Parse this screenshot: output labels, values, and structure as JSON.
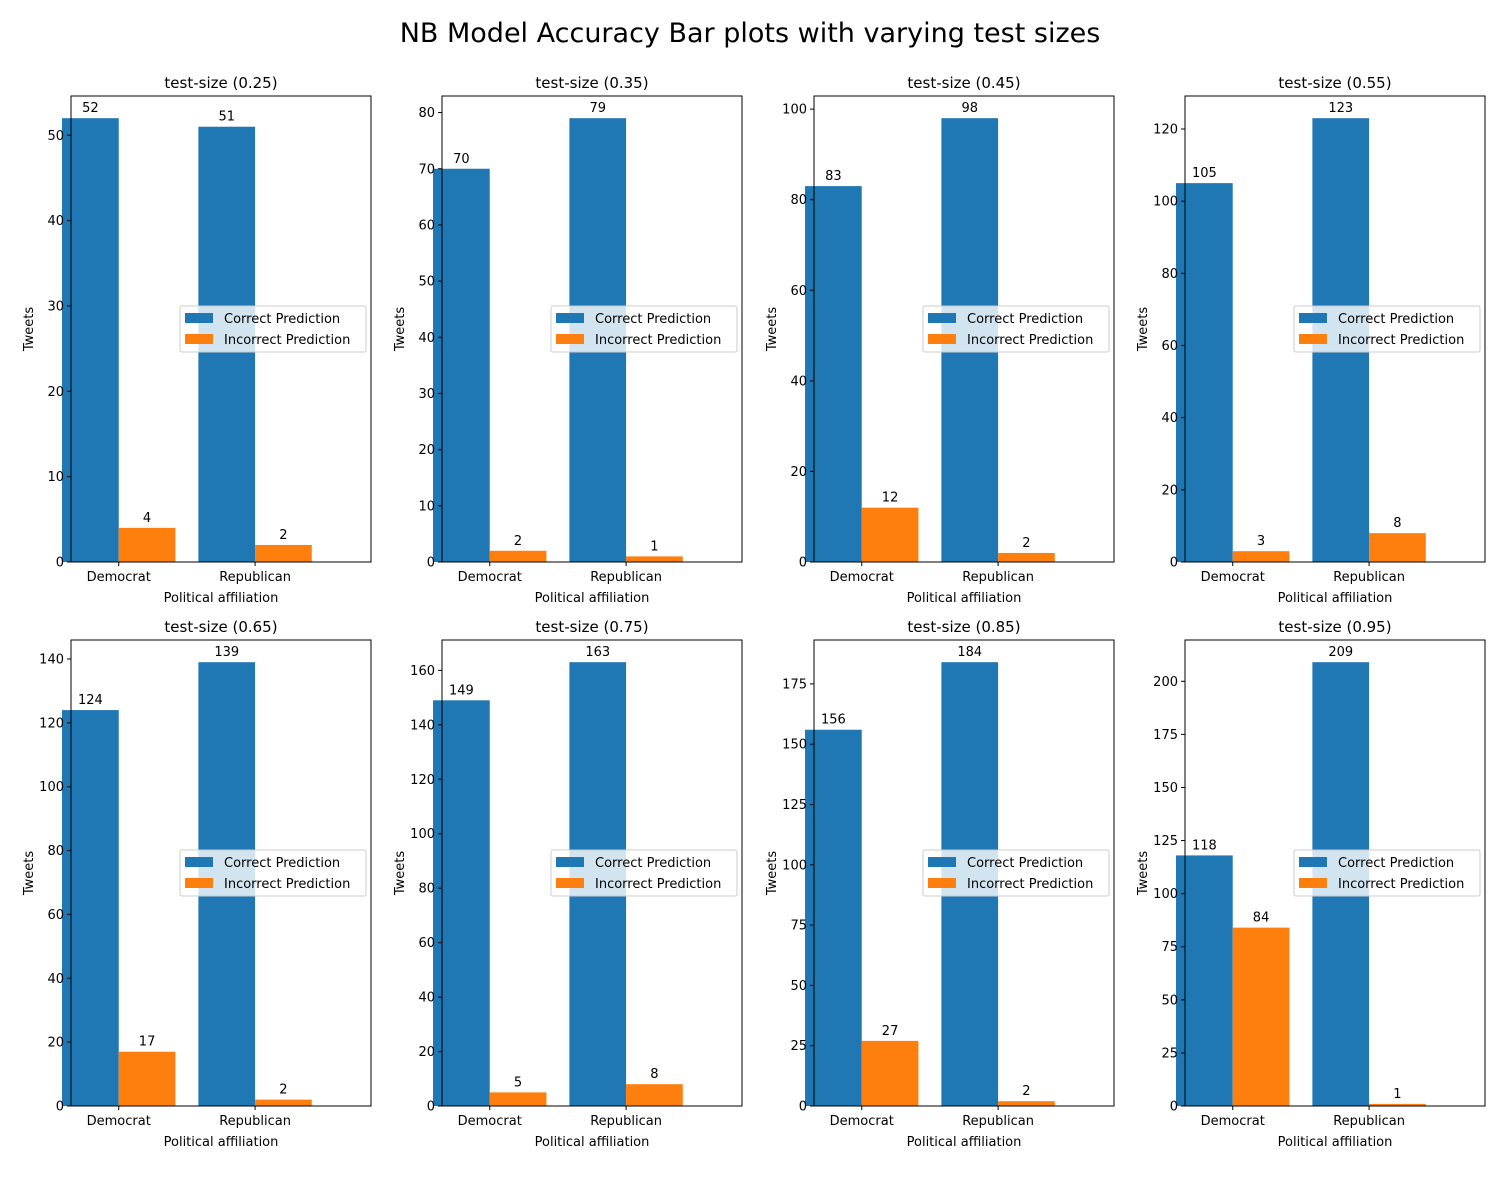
{
  "figure_title": "NB Model Accuracy Bar plots with varying test sizes",
  "colors": {
    "correct": "#1f77b4",
    "incorrect": "#ff7f0e"
  },
  "chart_data": [
    {
      "type": "bar",
      "title": "test-size (0.25)",
      "xlabel": "Political affiliation",
      "ylabel": "Tweets",
      "categories": [
        "Democrat",
        "Republican"
      ],
      "ylim": [
        0,
        54.6
      ],
      "yticks": [
        0,
        10,
        20,
        30,
        40,
        50
      ],
      "legend": "center-right",
      "series": [
        {
          "name": "Correct Prediction",
          "values": [
            52,
            51
          ]
        },
        {
          "name": "Incorrect Prediction",
          "values": [
            4,
            2
          ]
        }
      ]
    },
    {
      "type": "bar",
      "title": "test-size (0.35)",
      "xlabel": "Political affiliation",
      "ylabel": "Tweets",
      "categories": [
        "Democrat",
        "Republican"
      ],
      "ylim": [
        0,
        82.95
      ],
      "yticks": [
        0,
        10,
        20,
        30,
        40,
        50,
        60,
        70,
        80
      ],
      "legend": "center-right",
      "series": [
        {
          "name": "Correct Prediction",
          "values": [
            70,
            79
          ]
        },
        {
          "name": "Incorrect Prediction",
          "values": [
            2,
            1
          ]
        }
      ]
    },
    {
      "type": "bar",
      "title": "test-size (0.45)",
      "xlabel": "Political affiliation",
      "ylabel": "Tweets",
      "categories": [
        "Democrat",
        "Republican"
      ],
      "ylim": [
        0,
        102.9
      ],
      "yticks": [
        0,
        20,
        40,
        60,
        80,
        100
      ],
      "legend": "center-right",
      "series": [
        {
          "name": "Correct Prediction",
          "values": [
            83,
            98
          ]
        },
        {
          "name": "Incorrect Prediction",
          "values": [
            12,
            2
          ]
        }
      ]
    },
    {
      "type": "bar",
      "title": "test-size (0.55)",
      "xlabel": "Political affiliation",
      "ylabel": "Tweets",
      "categories": [
        "Democrat",
        "Republican"
      ],
      "ylim": [
        0,
        129.15
      ],
      "yticks": [
        0,
        20,
        40,
        60,
        80,
        100,
        120
      ],
      "legend": "center-right",
      "series": [
        {
          "name": "Correct Prediction",
          "values": [
            105,
            123
          ]
        },
        {
          "name": "Incorrect Prediction",
          "values": [
            3,
            8
          ]
        }
      ]
    },
    {
      "type": "bar",
      "title": "test-size (0.65)",
      "xlabel": "Political affiliation",
      "ylabel": "Tweets",
      "categories": [
        "Democrat",
        "Republican"
      ],
      "ylim": [
        0,
        145.95
      ],
      "yticks": [
        0,
        20,
        40,
        60,
        80,
        100,
        120,
        140
      ],
      "legend": "center-right",
      "series": [
        {
          "name": "Correct Prediction",
          "values": [
            124,
            139
          ]
        },
        {
          "name": "Incorrect Prediction",
          "values": [
            17,
            2
          ]
        }
      ]
    },
    {
      "type": "bar",
      "title": "test-size (0.75)",
      "xlabel": "Political affiliation",
      "ylabel": "Tweets",
      "categories": [
        "Democrat",
        "Republican"
      ],
      "ylim": [
        0,
        171.15
      ],
      "yticks": [
        0,
        20,
        40,
        60,
        80,
        100,
        120,
        140,
        160
      ],
      "legend": "center-right",
      "series": [
        {
          "name": "Correct Prediction",
          "values": [
            149,
            163
          ]
        },
        {
          "name": "Incorrect Prediction",
          "values": [
            5,
            8
          ]
        }
      ]
    },
    {
      "type": "bar",
      "title": "test-size (0.85)",
      "xlabel": "Political affiliation",
      "ylabel": "Tweets",
      "categories": [
        "Democrat",
        "Republican"
      ],
      "ylim": [
        0,
        193.2
      ],
      "yticks": [
        0,
        25,
        50,
        75,
        100,
        125,
        150,
        175
      ],
      "legend": "center-right",
      "series": [
        {
          "name": "Correct Prediction",
          "values": [
            156,
            184
          ]
        },
        {
          "name": "Incorrect Prediction",
          "values": [
            27,
            2
          ]
        }
      ]
    },
    {
      "type": "bar",
      "title": "test-size (0.95)",
      "xlabel": "Political affiliation",
      "ylabel": "Tweets",
      "categories": [
        "Democrat",
        "Republican"
      ],
      "ylim": [
        0,
        219.45
      ],
      "yticks": [
        0,
        25,
        50,
        75,
        100,
        125,
        150,
        175,
        200
      ],
      "legend": "center-right",
      "series": [
        {
          "name": "Correct Prediction",
          "values": [
            118,
            209
          ]
        },
        {
          "name": "Incorrect Prediction",
          "values": [
            84,
            1
          ]
        }
      ]
    }
  ]
}
